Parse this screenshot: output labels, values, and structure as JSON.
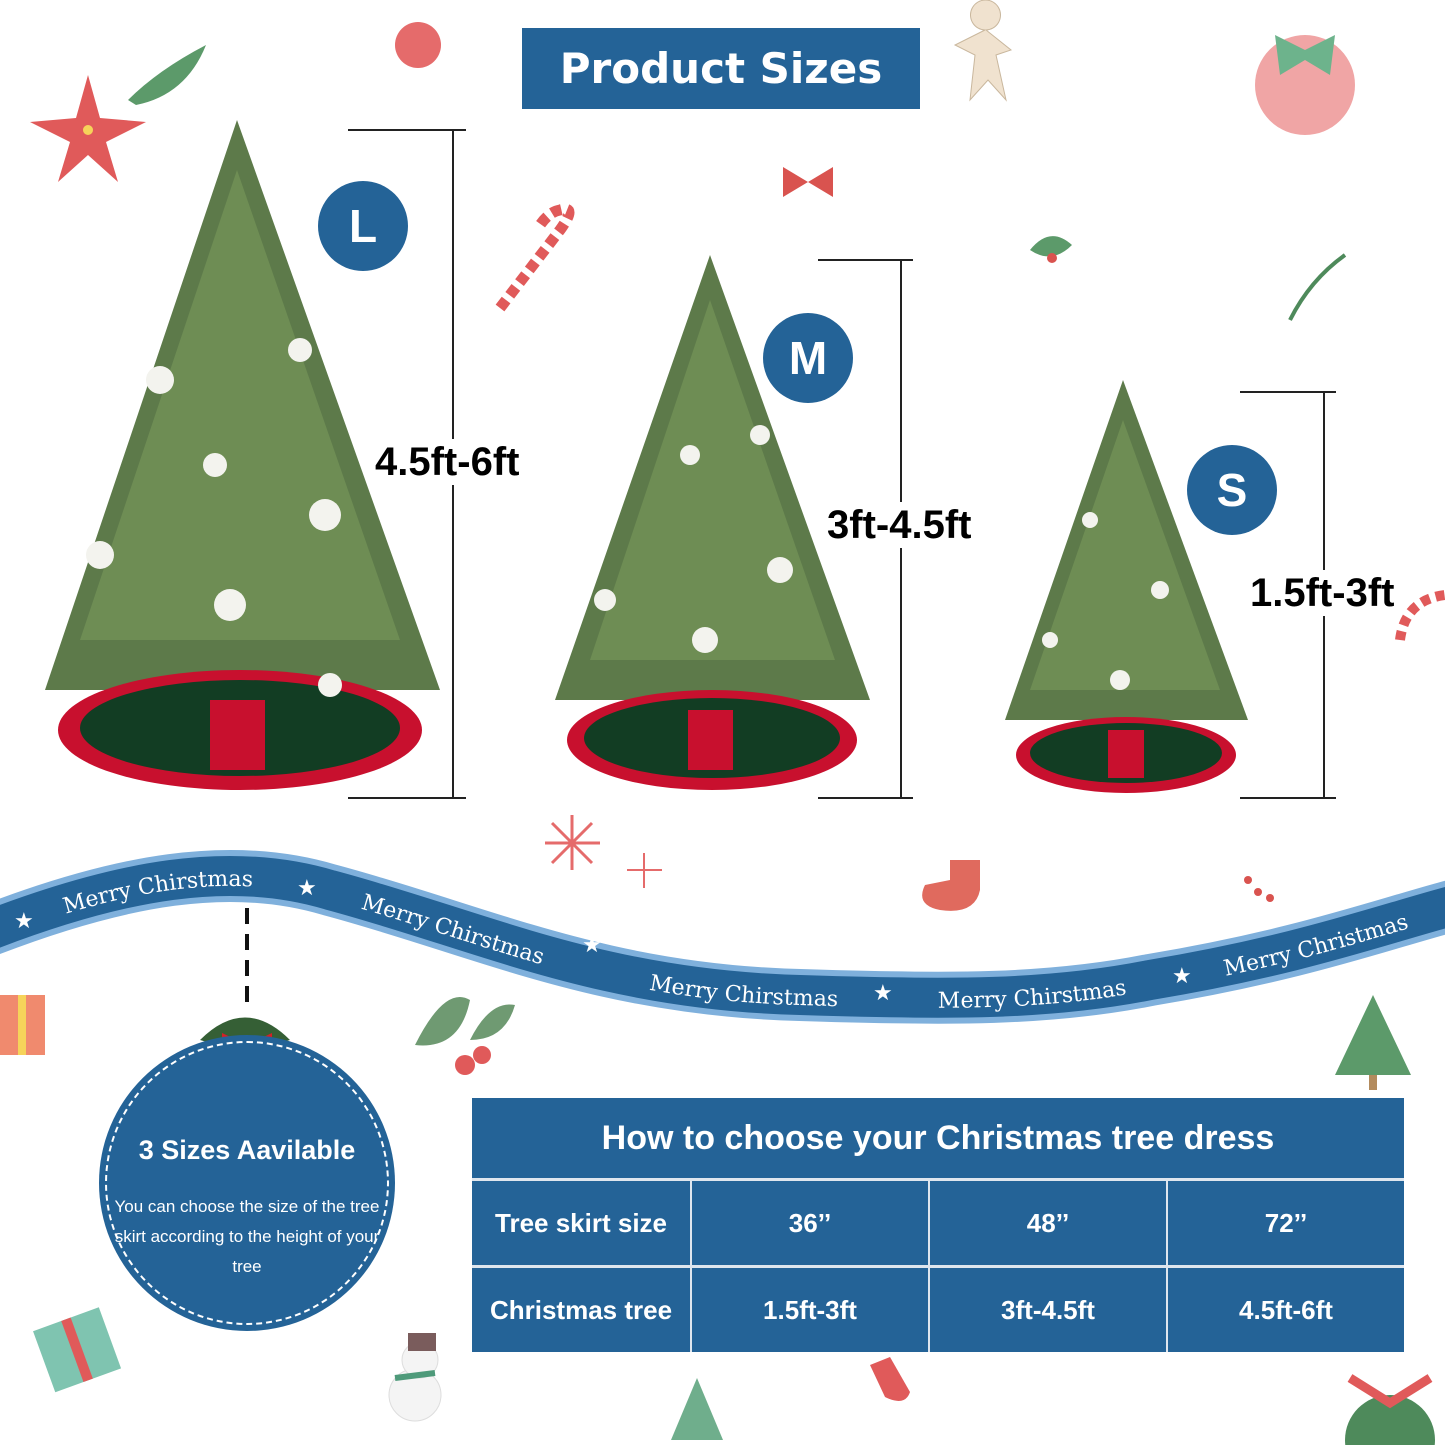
{
  "title": "Product Sizes",
  "sizes": [
    {
      "badge": "L",
      "range": "4.5ft-6ft"
    },
    {
      "badge": "M",
      "range": "3ft-4.5ft"
    },
    {
      "badge": "S",
      "range": "1.5ft-3ft"
    }
  ],
  "ribbon": {
    "texts": [
      "Merry Chirstmas",
      "Merry Chirstmas",
      "Merry Chirstmas",
      "Merry Chirstmas",
      "Merry Christmas"
    ],
    "color": "#246397",
    "edge_color": "#7fb0dc"
  },
  "info_circle": {
    "heading": "3 Sizes Aavilable",
    "body": "You can choose the size of the tree skirt according to the height of your tree"
  },
  "table": {
    "title": "How to choose your Christmas tree dress",
    "rows": [
      [
        "Tree skirt size",
        "36’’",
        "48’’",
        "72’’"
      ],
      [
        "Christmas tree",
        "1.5ft-3ft",
        "3ft-4.5ft",
        "4.5ft-6ft"
      ]
    ]
  },
  "colors": {
    "brand_blue": "#246397",
    "skirt_red": "#c8102e",
    "skirt_green": "#123d23",
    "tree_green": "#5d7a4a"
  }
}
